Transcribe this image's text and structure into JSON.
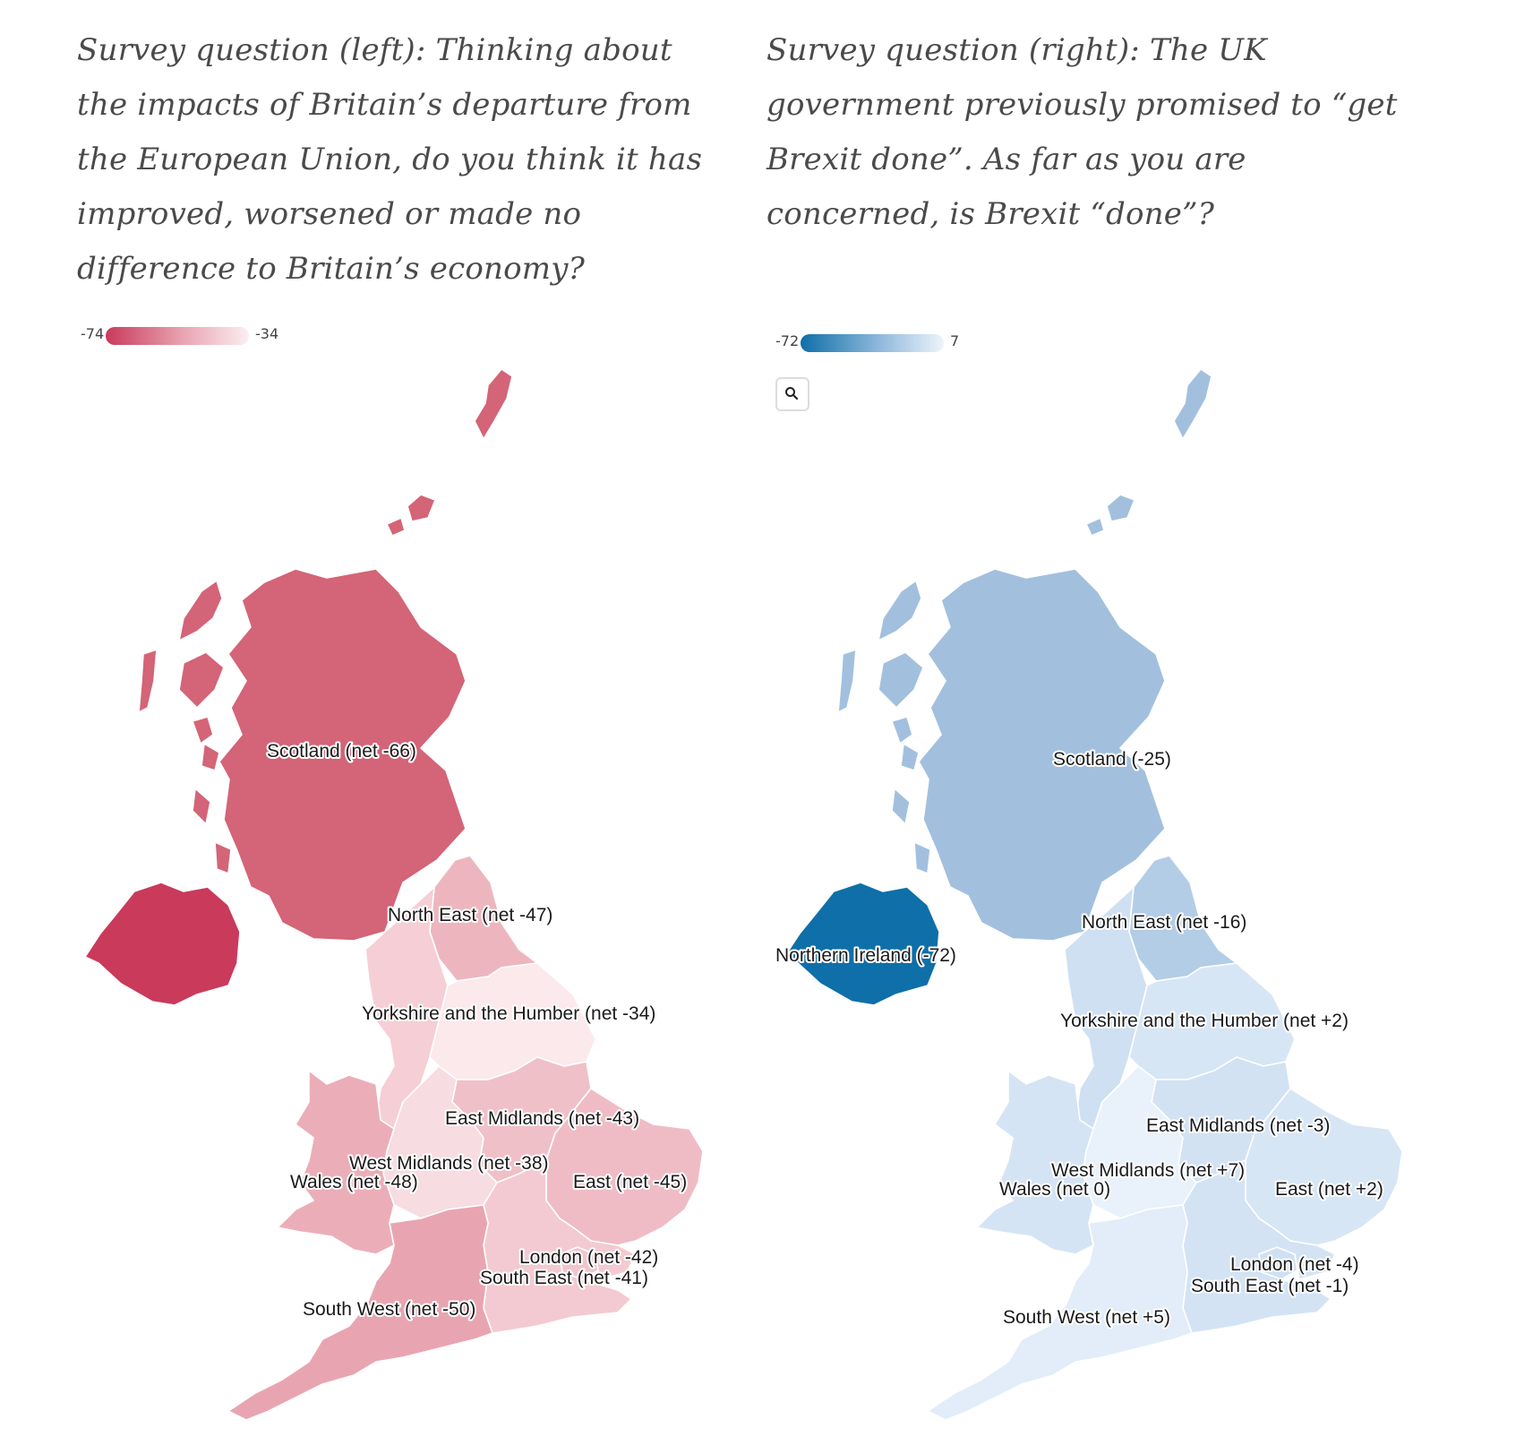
{
  "left": {
    "question": "Survey question (left): Thinking about the impacts of Britain’s departure from the European Union, do you think it has improved, worsened or made no difference to Britain’s economy?",
    "legend": {
      "min": "-74",
      "max": "-34"
    },
    "regions": [
      {
        "id": "scotland",
        "label": "Scotland (net -66)",
        "value": -66,
        "color": "#d46477"
      },
      {
        "id": "northern-ireland",
        "label": "",
        "value": -74,
        "color": "#c93a5b"
      },
      {
        "id": "north-east",
        "label": "North East (net -47)",
        "value": -47,
        "color": "#edb6bf"
      },
      {
        "id": "north-west",
        "label": "",
        "value": -40,
        "color": "#f5cfd5"
      },
      {
        "id": "yorkshire",
        "label": "Yorkshire and the Humber (net -34)",
        "value": -34,
        "color": "#fbe9ec"
      },
      {
        "id": "east-midlands",
        "label": "East Midlands (net -43)",
        "value": -43,
        "color": "#f0c0c8"
      },
      {
        "id": "west-midlands",
        "label": "West Midlands (net -38)",
        "value": -38,
        "color": "#f7dce1"
      },
      {
        "id": "wales",
        "label": "Wales (net -48)",
        "value": -48,
        "color": "#ebaeb8"
      },
      {
        "id": "east",
        "label": "East (net -45)",
        "value": -45,
        "color": "#efbcc5"
      },
      {
        "id": "london",
        "label": "London (net -42)",
        "value": -42,
        "color": "#f1c5cc"
      },
      {
        "id": "south-east",
        "label": "South East (net -41)",
        "value": -41,
        "color": "#f3cad1"
      },
      {
        "id": "south-west",
        "label": "South West (net -50)",
        "value": -50,
        "color": "#e8a5b1"
      }
    ]
  },
  "right": {
    "question": "Survey question (right): The UK government previously promised to “get Brexit done”. As far as you are concerned, is Brexit “done”?",
    "legend": {
      "min": "-72",
      "max": "7"
    },
    "zoom_icon": "magnifier-icon",
    "regions": [
      {
        "id": "scotland",
        "label": "Scotland (-25)",
        "value": -25,
        "color": "#a2c0de"
      },
      {
        "id": "northern-ireland",
        "label": "Northern Ireland (-72)",
        "value": -72,
        "color": "#0f6fa8"
      },
      {
        "id": "north-east",
        "label": "North East (net -16)",
        "value": -16,
        "color": "#b3cde6"
      },
      {
        "id": "north-west",
        "label": "",
        "value": -5,
        "color": "#cfe0f2"
      },
      {
        "id": "yorkshire",
        "label": "Yorkshire and the Humber (net +2)",
        "value": 2,
        "color": "#d7e6f5"
      },
      {
        "id": "east-midlands",
        "label": "East Midlands (net -3)",
        "value": -3,
        "color": "#d2e2f3"
      },
      {
        "id": "west-midlands",
        "label": "West Midlands (net +7)",
        "value": 7,
        "color": "#e9f2fb"
      },
      {
        "id": "wales",
        "label": "Wales (net 0)",
        "value": 0,
        "color": "#d5e4f4"
      },
      {
        "id": "east",
        "label": "East (net +2)",
        "value": 2,
        "color": "#d7e6f5"
      },
      {
        "id": "london",
        "label": "London (net -4)",
        "value": -4,
        "color": "#cfe0f2"
      },
      {
        "id": "south-east",
        "label": "South East (net -1)",
        "value": -1,
        "color": "#d3e3f4"
      },
      {
        "id": "south-west",
        "label": "South West (net +5)",
        "value": 5,
        "color": "#e2edf9"
      }
    ]
  }
}
